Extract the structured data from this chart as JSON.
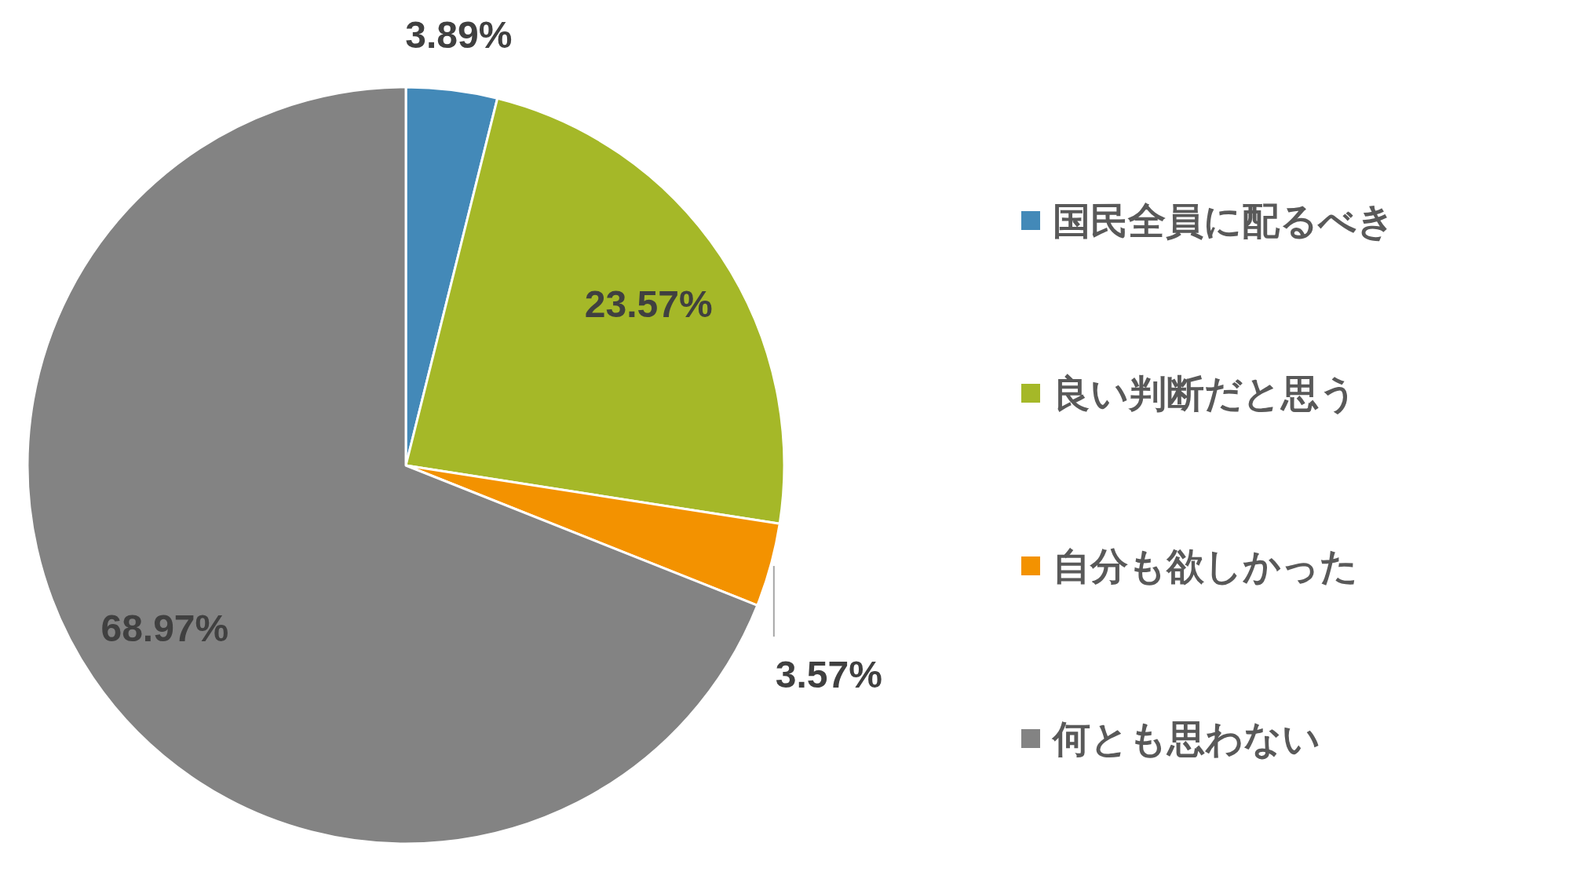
{
  "chart_data": {
    "type": "pie",
    "categories": [
      "国民全員に配るべき",
      "良い判断だと思う",
      "自分も欲しかった",
      "何とも思わない"
    ],
    "values": [
      3.89,
      23.57,
      3.57,
      68.97
    ],
    "colors": [
      "#4389b8",
      "#a5b828",
      "#f39200",
      "#838383"
    ],
    "value_labels": [
      "3.89%",
      "23.57%",
      "3.57%",
      "68.97%"
    ],
    "legend": "right"
  }
}
